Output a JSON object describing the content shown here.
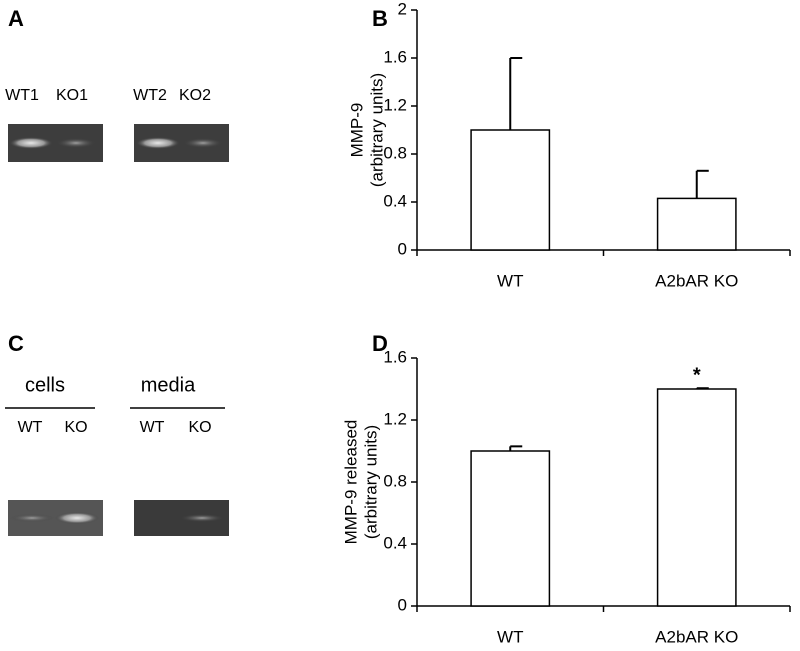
{
  "panel_labels": [
    "A",
    "B",
    "C",
    "D"
  ],
  "gel_a": {
    "lanes": [
      "WT1",
      "KO1",
      "WT2",
      "KO2"
    ]
  },
  "gel_c": {
    "groups": [
      {
        "name": "cells",
        "lanes": [
          "WT",
          "KO"
        ]
      },
      {
        "name": "media",
        "lanes": [
          "WT",
          "KO"
        ]
      }
    ]
  },
  "chart_data": [
    {
      "type": "bar",
      "ylabel": [
        "MMP-9",
        "(arbitrary units)"
      ],
      "categories": [
        "WT",
        "A2bAR KO"
      ],
      "values": [
        1.0,
        0.43
      ],
      "errors": [
        0.6,
        0.23
      ],
      "color": "#ffffff",
      "ylim": [
        0,
        2
      ],
      "yticks": [
        0,
        0.4,
        0.8,
        1.2,
        1.6,
        2
      ]
    },
    {
      "type": "bar",
      "ylabel": [
        "MMP-9 released",
        "(arbitrary units)"
      ],
      "categories": [
        "WT",
        "A2bAR KO"
      ],
      "values": [
        1.0,
        1.4
      ],
      "errors": [
        0.03,
        0.005
      ],
      "color": "#ffffff",
      "ylim": [
        0,
        1.6
      ],
      "yticks": [
        0,
        0.4,
        0.8,
        1.2,
        1.6
      ],
      "annotations": [
        {
          "text": "*",
          "x": "A2bAR KO"
        }
      ]
    }
  ]
}
